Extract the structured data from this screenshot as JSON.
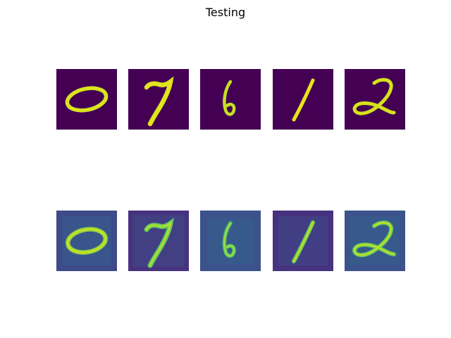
{
  "figure": {
    "title": "Testing"
  },
  "colors": {
    "original_background": "#440154",
    "original_stroke": "#d2e21b",
    "reconstructed_background": "#3b528b",
    "reconstructed_background_dark": "#46327e",
    "reconstructed_stroke": "#7ad151",
    "reconstructed_stroke_bright": "#bddf26"
  },
  "rows": [
    {
      "role": "original",
      "digits": [
        "0",
        "7",
        "6",
        "1",
        "2"
      ]
    },
    {
      "role": "reconstructed",
      "digits": [
        "0",
        "7",
        "6",
        "1",
        "2"
      ]
    }
  ]
}
